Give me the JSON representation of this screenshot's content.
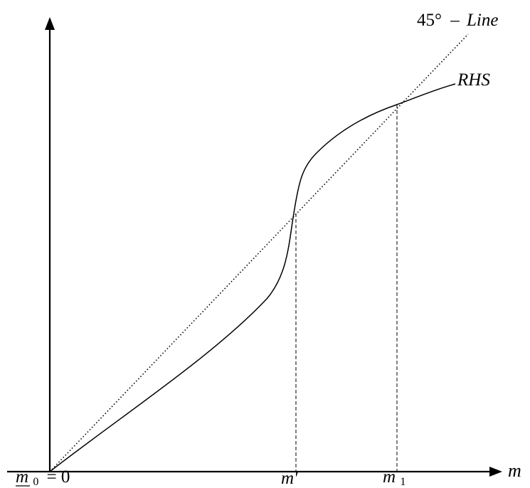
{
  "labels": {
    "line_45_deg": "45°",
    "line_45_dash": "–",
    "line_45_word": "Line",
    "rhs": "RHS",
    "x_axis": "m",
    "origin_m": "m",
    "origin_sub": "0",
    "origin_eq": "= 0",
    "m_prime": "m'",
    "m_one": "m",
    "m_one_sub": "1"
  },
  "colors": {
    "ink": "#000000",
    "background": "#ffffff"
  }
}
